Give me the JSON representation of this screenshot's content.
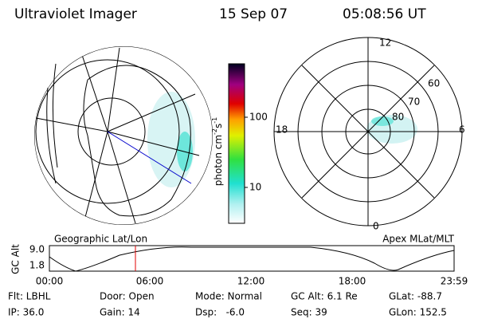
{
  "header": {
    "title": "Ultraviolet Imager",
    "date": "15 Sep 07",
    "time": "05:08:56 UT"
  },
  "left_panel": {
    "label": "Geographic Lat/Lon"
  },
  "right_panel": {
    "label": "Apex MLat/MLT",
    "mlt_labels": [
      "12",
      "18",
      "6",
      "0"
    ],
    "mlat_labels": [
      "60",
      "70",
      "80"
    ]
  },
  "colorbar": {
    "label_parts": [
      "photon cm",
      "-2",
      "s",
      "-1"
    ],
    "ticks": [
      "100",
      "10"
    ]
  },
  "altitude_plot": {
    "ylabel": "GC Alt",
    "yticks": [
      "9.0",
      "1.8"
    ],
    "xticks": [
      "00:00",
      "06:00",
      "12:00",
      "18:00",
      "23:59"
    ]
  },
  "info": {
    "rows": [
      [
        "Flt: LBHL",
        "Door: Open",
        "Mode: Normal",
        "GC Alt: 6.1 Re",
        "GLat: -88.7"
      ],
      [
        "IP: 36.0",
        "Gain: 14",
        "Dsp:   -6.0",
        "Seq: 39",
        "GLon: 152.5"
      ]
    ]
  }
}
